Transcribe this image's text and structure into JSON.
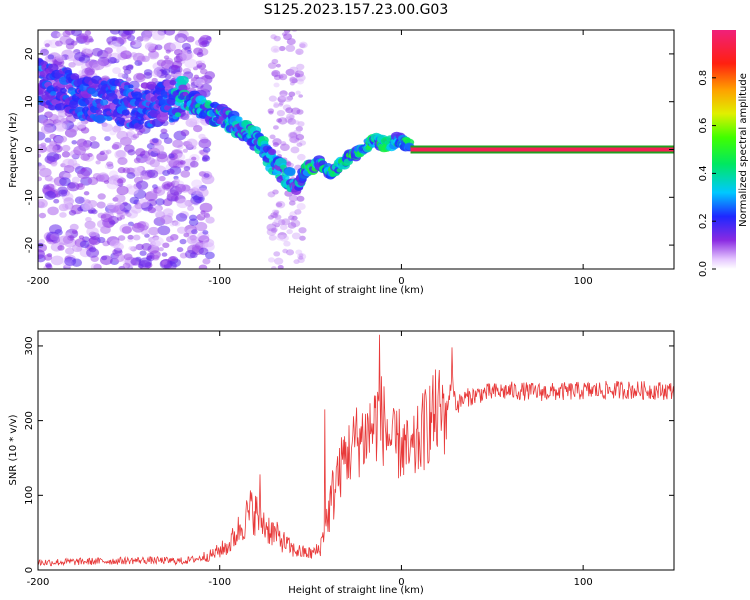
{
  "title": "S125.2023.157.23.00.G03",
  "colors": {
    "snr_line": "#e83a3a",
    "center_line": "#20a020",
    "axis": "#000000"
  },
  "chart_data": [
    {
      "type": "heatmap",
      "xlabel": "Height of straight line (km)",
      "ylabel": "Frequency (Hz)",
      "xlim": [
        -200,
        150
      ],
      "ylim": [
        -25,
        25
      ],
      "xticks": [
        -200,
        -100,
        0,
        100
      ],
      "xtick_labels": [
        "-200",
        "-100",
        "0",
        "100"
      ],
      "yticks": [
        -20,
        -10,
        0,
        10,
        20
      ],
      "ytick_labels": [
        "-20",
        "-10",
        "0",
        "10",
        "20"
      ],
      "colorbar": {
        "label": "Normalized spectral amplitude",
        "range": [
          0,
          1
        ],
        "ticks": [
          0.0,
          0.2,
          0.4,
          0.6,
          0.8
        ],
        "tick_labels": [
          "0.0",
          "0.2",
          "0.4",
          "0.6",
          "0.8"
        ],
        "colormap": "rainbow (white-lavender to purple, blue, cyan, green, yellow, orange, red, magenta)"
      },
      "ridge_frequency_track": [
        {
          "x": -190,
          "y": 13
        },
        {
          "x": -175,
          "y": 11
        },
        {
          "x": -160,
          "y": 10
        },
        {
          "x": -145,
          "y": 9
        },
        {
          "x": -130,
          "y": 10
        },
        {
          "x": -120,
          "y": 11
        },
        {
          "x": -112,
          "y": 9
        },
        {
          "x": -100,
          "y": 7
        },
        {
          "x": -90,
          "y": 5
        },
        {
          "x": -80,
          "y": 2
        },
        {
          "x": -72,
          "y": -2
        },
        {
          "x": -65,
          "y": -5
        },
        {
          "x": -58,
          "y": -8
        },
        {
          "x": -52,
          "y": -4
        },
        {
          "x": -45,
          "y": -3
        },
        {
          "x": -38,
          "y": -5
        },
        {
          "x": -30,
          "y": -2
        },
        {
          "x": -22,
          "y": 0
        },
        {
          "x": -15,
          "y": 2
        },
        {
          "x": -8,
          "y": 1
        },
        {
          "x": -2,
          "y": 2
        },
        {
          "x": 5,
          "y": 1
        },
        {
          "x": 20,
          "y": 0
        },
        {
          "x": 150,
          "y": 0
        }
      ],
      "description_values": {
        "steady_line_start_x": 5,
        "steady_line_frequency": 0,
        "steady_line_amplitude": 0.95
      }
    },
    {
      "type": "line",
      "xlabel": "Height of straight line (km)",
      "ylabel": "SNR (10 * v/v)",
      "xlim": [
        -200,
        150
      ],
      "ylim": [
        0,
        320
      ],
      "xticks": [
        -200,
        -100,
        0,
        100
      ],
      "xtick_labels": [
        "-200",
        "-100",
        "0",
        "100"
      ],
      "yticks": [
        0,
        100,
        200,
        300
      ],
      "ytick_labels": [
        "0",
        "100",
        "200",
        "300"
      ],
      "series": [
        {
          "x": [
            -200,
            -180,
            -160,
            -140,
            -120,
            -105,
            -95,
            -88,
            -82,
            -75,
            -70,
            -65,
            -60,
            -55,
            -50,
            -45,
            -40,
            -36,
            -32,
            -28,
            -24,
            -20,
            -15,
            -12,
            -8,
            -4,
            0,
            5,
            10,
            15,
            20,
            25,
            28,
            30,
            35,
            45,
            60,
            80,
            100,
            120,
            150
          ],
          "values": [
            10,
            11,
            12,
            13,
            12,
            18,
            30,
            55,
            75,
            55,
            45,
            35,
            25,
            22,
            20,
            25,
            70,
            110,
            150,
            160,
            175,
            180,
            195,
            210,
            185,
            165,
            170,
            150,
            175,
            200,
            210,
            215,
            260,
            220,
            230,
            237,
            240,
            238,
            240,
            241,
            240
          ],
          "spikes": [
            {
              "x": -12,
              "y": 315
            },
            {
              "x": 28,
              "y": 298
            },
            {
              "x": -78,
              "y": 128
            },
            {
              "x": -42,
              "y": 215
            },
            {
              "x": -25,
              "y": 200
            }
          ]
        }
      ]
    }
  ]
}
